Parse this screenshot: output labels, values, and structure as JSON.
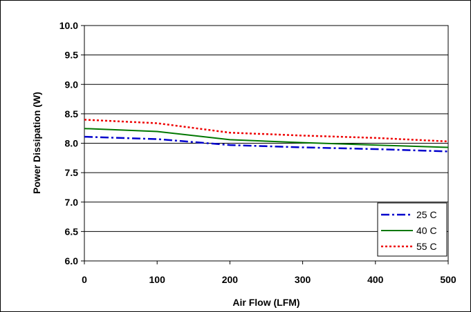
{
  "chart_data": {
    "type": "line",
    "title": "",
    "xlabel": "Air Flow (LFM)",
    "ylabel": "Power Dissipation (W)",
    "xlim": [
      0,
      500
    ],
    "ylim": [
      6.0,
      10.0
    ],
    "x_ticks": [
      "0",
      "100",
      "200",
      "300",
      "400",
      "500"
    ],
    "y_ticks": [
      "6.0",
      "6.5",
      "7.0",
      "7.5",
      "8.0",
      "8.5",
      "9.0",
      "9.5",
      "10.0"
    ],
    "grid": "horizontal",
    "legend_position": "bottom-right",
    "x": [
      0,
      100,
      200,
      300,
      400,
      500
    ],
    "series": [
      {
        "name": "25 C",
        "values": [
          8.11,
          8.07,
          7.97,
          7.93,
          7.9,
          7.86
        ],
        "color": "#0000cc",
        "style": "dash-dot"
      },
      {
        "name": "40 C",
        "values": [
          8.25,
          8.2,
          8.06,
          8.01,
          7.97,
          7.93
        ],
        "color": "#007700",
        "style": "solid"
      },
      {
        "name": "55 C",
        "values": [
          8.4,
          8.34,
          8.18,
          8.13,
          8.09,
          8.03
        ],
        "color": "#ee0000",
        "style": "dotted"
      }
    ]
  }
}
